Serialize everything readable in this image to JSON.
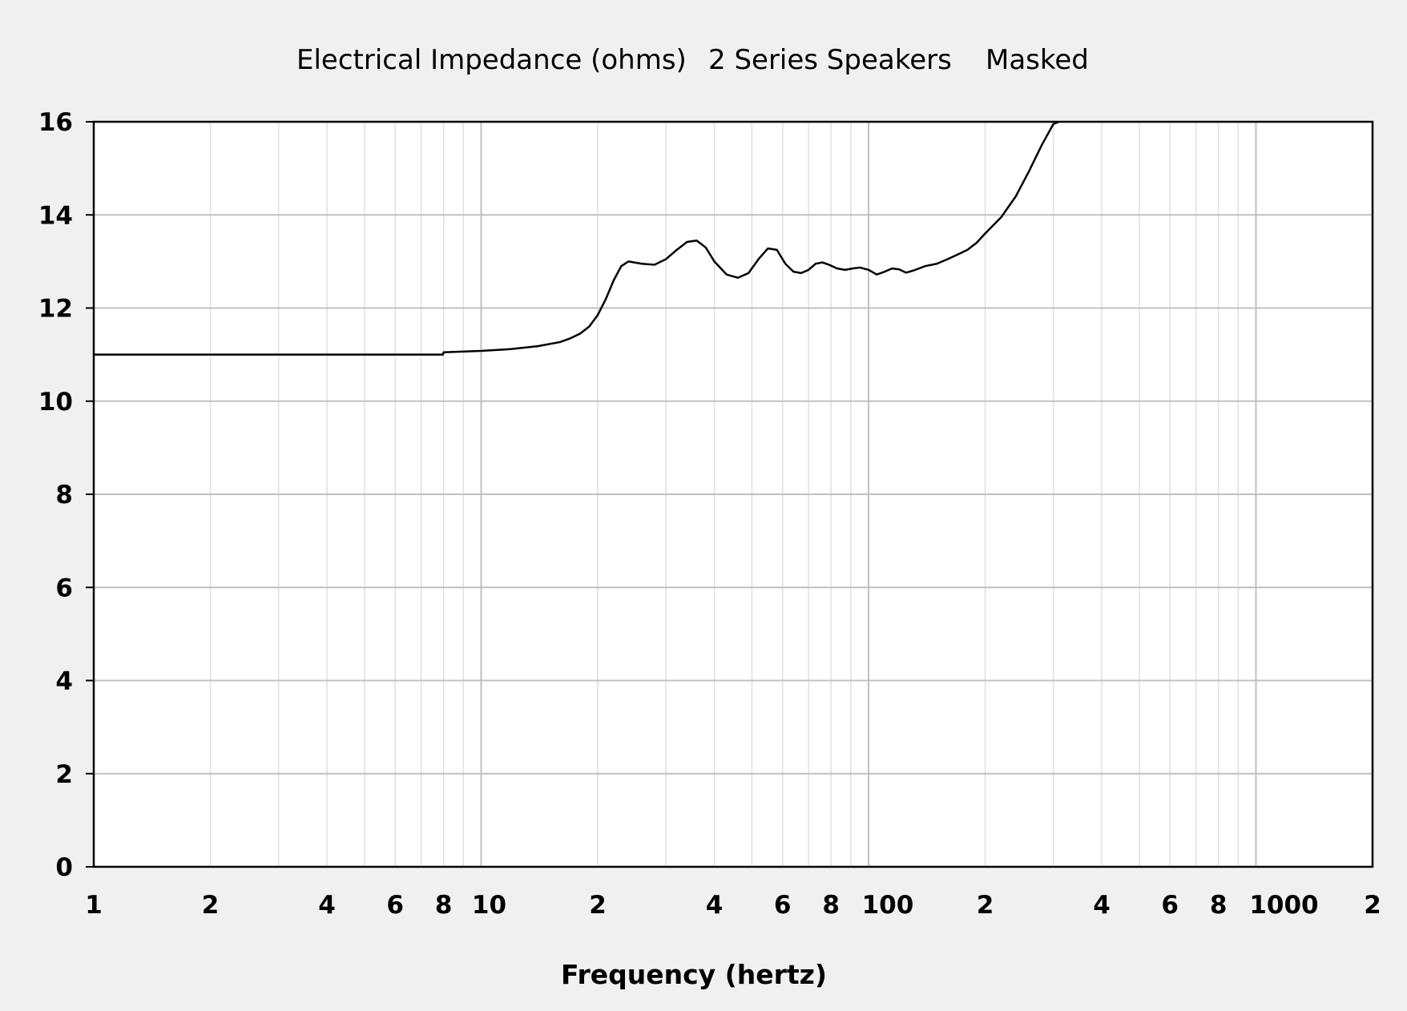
{
  "chart_data": {
    "type": "line",
    "title_parts": [
      "Electrical Impedance (ohms)",
      "2 Series Speakers",
      "Masked"
    ],
    "xlabel": "Frequency (hertz)",
    "ylabel": "",
    "x_scale": "log",
    "xlim": [
      1,
      2000
    ],
    "ylim": [
      0,
      16
    ],
    "grid": true,
    "x_ticks": [
      {
        "value": 1,
        "label": "1"
      },
      {
        "value": 2,
        "label": "2"
      },
      {
        "value": 4,
        "label": "4"
      },
      {
        "value": 6,
        "label": "6"
      },
      {
        "value": 8,
        "label": "8"
      },
      {
        "value": 10,
        "label": "10"
      },
      {
        "value": 20,
        "label": "2"
      },
      {
        "value": 40,
        "label": "4"
      },
      {
        "value": 60,
        "label": "6"
      },
      {
        "value": 80,
        "label": "8"
      },
      {
        "value": 100,
        "label": "100"
      },
      {
        "value": 200,
        "label": "2"
      },
      {
        "value": 400,
        "label": "4"
      },
      {
        "value": 600,
        "label": "6"
      },
      {
        "value": 800,
        "label": "8"
      },
      {
        "value": 1000,
        "label": "1000"
      },
      {
        "value": 2000,
        "label": "2"
      }
    ],
    "y_ticks": [
      0,
      2,
      4,
      6,
      8,
      10,
      12,
      14,
      16
    ],
    "colors": {
      "background": "#f0f0f0",
      "plot_background": "#ffffff",
      "grid_major": "#c0c0c0",
      "grid_minor": "#e0e0e0",
      "line": "#000000",
      "frame": "#000000"
    },
    "series": [
      {
        "x": [
          1,
          2,
          4,
          7.97,
          8.0,
          10,
          12,
          14,
          16,
          17,
          18,
          19,
          20,
          21,
          22,
          23,
          24,
          26,
          28,
          30,
          32,
          34,
          36,
          38,
          40,
          43,
          46,
          49,
          52,
          55,
          58,
          61,
          64,
          67,
          70,
          73,
          76,
          79,
          83,
          87,
          91,
          95,
          100,
          105,
          110,
          115,
          120,
          125,
          130,
          140,
          150,
          160,
          170,
          180,
          190,
          200,
          220,
          240,
          260,
          280,
          300,
          310
        ],
        "y": [
          11.0,
          11.0,
          11.0,
          11.0,
          11.05,
          11.08,
          11.12,
          11.18,
          11.27,
          11.35,
          11.45,
          11.6,
          11.85,
          12.2,
          12.6,
          12.9,
          13.0,
          12.95,
          12.93,
          13.05,
          13.25,
          13.42,
          13.45,
          13.3,
          13.0,
          12.72,
          12.65,
          12.75,
          13.05,
          13.28,
          13.25,
          12.95,
          12.78,
          12.75,
          12.82,
          12.95,
          12.98,
          12.93,
          12.85,
          12.82,
          12.85,
          12.87,
          12.82,
          12.72,
          12.78,
          12.85,
          12.83,
          12.76,
          12.8,
          12.9,
          12.95,
          13.05,
          13.15,
          13.25,
          13.4,
          13.6,
          13.95,
          14.4,
          14.95,
          15.5,
          15.95,
          16.0
        ]
      }
    ]
  }
}
